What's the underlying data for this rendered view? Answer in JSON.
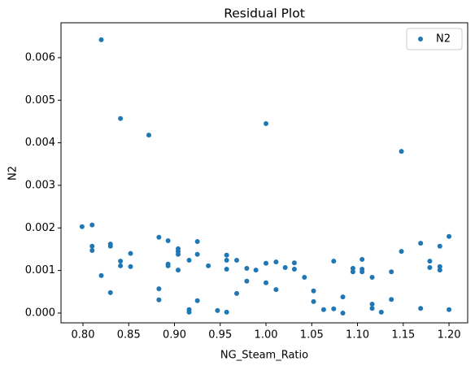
{
  "chart_data": {
    "type": "scatter",
    "title": "Residual Plot",
    "x_label": "NG_Steam_Ratio",
    "y_label": "N2",
    "legend": "upper right",
    "xlim": [
      0.776,
      1.2204
    ],
    "ylim": [
      -0.00023,
      0.00682
    ],
    "xticks": [
      {
        "value": 0.8,
        "label": "0.80"
      },
      {
        "value": 0.85,
        "label": "0.85"
      },
      {
        "value": 0.9,
        "label": "0.90"
      },
      {
        "value": 0.95,
        "label": "0.95"
      },
      {
        "value": 1.0,
        "label": "1.00"
      },
      {
        "value": 1.05,
        "label": "1.05"
      },
      {
        "value": 1.1,
        "label": "1.10"
      },
      {
        "value": 1.15,
        "label": "1.15"
      },
      {
        "value": 1.2,
        "label": "1.20"
      }
    ],
    "yticks": [
      {
        "value": 0,
        "label": "0.000"
      },
      {
        "value": 0.001,
        "label": "0.001"
      },
      {
        "value": 0.002,
        "label": "0.002"
      },
      {
        "value": 0.003,
        "label": "0.003"
      },
      {
        "value": 0.004,
        "label": "0.004"
      },
      {
        "value": 0.005,
        "label": "0.005"
      },
      {
        "value": 0.006,
        "label": "0.006"
      }
    ],
    "series": [
      {
        "name": "N2",
        "color": "#1f77b4",
        "x": [
          0.799,
          0.81,
          0.81,
          0.81,
          0.82,
          0.82,
          0.83,
          0.83,
          0.83,
          0.841,
          0.841,
          0.841,
          0.852,
          0.852,
          0.872,
          0.883,
          0.883,
          0.883,
          0.893,
          0.893,
          0.893,
          0.904,
          0.904,
          0.904,
          0.904,
          0.916,
          0.916,
          0.916,
          0.925,
          0.925,
          0.925,
          0.937,
          0.947,
          0.957,
          0.957,
          0.957,
          0.957,
          0.968,
          0.968,
          0.979,
          0.979,
          0.989,
          1.0,
          1.0,
          1.0,
          1.011,
          1.011,
          1.021,
          1.031,
          1.031,
          1.042,
          1.052,
          1.052,
          1.063,
          1.074,
          1.074,
          1.084,
          1.084,
          1.095,
          1.095,
          1.105,
          1.105,
          1.105,
          1.116,
          1.116,
          1.116,
          1.126,
          1.137,
          1.137,
          1.148,
          1.148,
          1.169,
          1.169,
          1.179,
          1.179,
          1.19,
          1.19,
          1.19,
          1.2,
          1.2
        ],
        "values": [
          0.00203,
          0.00207,
          0.00157,
          0.00147,
          0.00642,
          0.00088,
          0.00162,
          0.00157,
          0.00048,
          0.00457,
          0.00122,
          0.00111,
          0.0014,
          0.00109,
          0.00418,
          0.00178,
          0.00057,
          0.00031,
          0.0017,
          0.00115,
          0.00111,
          0.00151,
          0.00145,
          0.00138,
          0.00101,
          0.00124,
          8e-05,
          2e-05,
          0.00168,
          0.00138,
          0.00029,
          0.00111,
          6e-05,
          0.00136,
          0.00124,
          0.00103,
          2e-05,
          0.00124,
          0.00046,
          0.00105,
          0.00075,
          0.00101,
          0.00445,
          0.00117,
          0.00071,
          0.0012,
          0.00055,
          0.00107,
          0.00118,
          0.00103,
          0.00084,
          0.00052,
          0.00027,
          8e-05,
          0.00122,
          0.0001,
          0.00038,
          0,
          0.00105,
          0.00097,
          0.00126,
          0.00103,
          0.00097,
          0.00084,
          0.00021,
          0.00011,
          2e-05,
          0.00097,
          0.00032,
          0.0038,
          0.00145,
          0.00164,
          0.00011,
          0.00122,
          0.00107,
          0.00157,
          0.00109,
          0.00101,
          0.0018,
          8e-05
        ]
      }
    ]
  }
}
